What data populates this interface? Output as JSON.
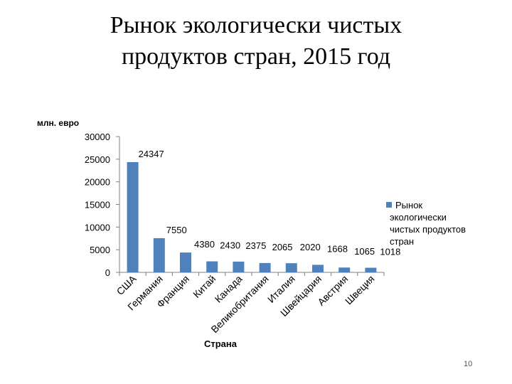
{
  "slide": {
    "title_line1": "Рынок экологически чистых",
    "title_line2": "продуктов стран, 2015 год",
    "page_number": "10"
  },
  "colors": {
    "bar": "#4f81bd",
    "axis": "#808080",
    "text": "#000000"
  },
  "chart_data": {
    "type": "bar",
    "ylabel": "млн. евро",
    "xlabel": "Страна",
    "ylim": [
      0,
      30000
    ],
    "yticks": [
      0,
      5000,
      10000,
      15000,
      20000,
      25000,
      30000
    ],
    "categories": [
      "США",
      "Германия",
      "Франция",
      "Китай",
      "Канада",
      "Великобритания",
      "Италия",
      "Швейцария",
      "Австрия",
      "Швеция"
    ],
    "series": [
      {
        "name": "Рынок экологически чистых продуктов стран",
        "values": [
          24347,
          7550,
          4380,
          2430,
          2375,
          2065,
          2020,
          1668,
          1065,
          1018
        ]
      }
    ],
    "data_labels": [
      "24347",
      "7550",
      "4380",
      "2430",
      "2375",
      "2065",
      "2020",
      "1668",
      "1065",
      "1018"
    ],
    "legend": [
      "Рынок",
      "экологически",
      "чистых продуктов",
      "стран"
    ],
    "legend_position": "right",
    "grid": false
  }
}
